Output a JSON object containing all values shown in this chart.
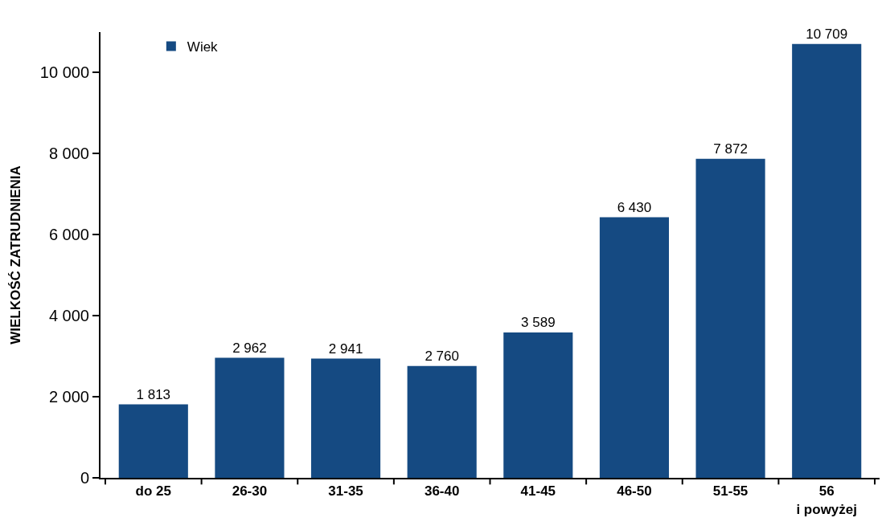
{
  "chart_data": {
    "type": "bar",
    "ylabel": "WIELKOŚĆ ZATRUDNIENIA",
    "categories": [
      "do 25",
      "26-30",
      "31-35",
      "36-40",
      "41-45",
      "46-50",
      "51-55",
      "56\ni powyżej"
    ],
    "series": [
      {
        "name": "Wiek",
        "color": "#154a82",
        "values": [
          1813,
          2962,
          2941,
          2760,
          3589,
          6430,
          7872,
          10709
        ],
        "value_labels": [
          "1 813",
          "2 962",
          "2 941",
          "2 760",
          "3 589",
          "6 430",
          "7 872",
          "10 709"
        ]
      }
    ],
    "ylim": [
      0,
      11000
    ],
    "yticks": [
      0,
      {
        "value": 2000,
        "label": "2 000"
      },
      {
        "value": 4000,
        "label": "4 000"
      },
      {
        "value": 6000,
        "label": "6 000"
      },
      {
        "value": 8000,
        "label": "8 000"
      },
      {
        "value": 10000,
        "label": "10 000"
      }
    ],
    "grid": false,
    "legend": "top left"
  }
}
